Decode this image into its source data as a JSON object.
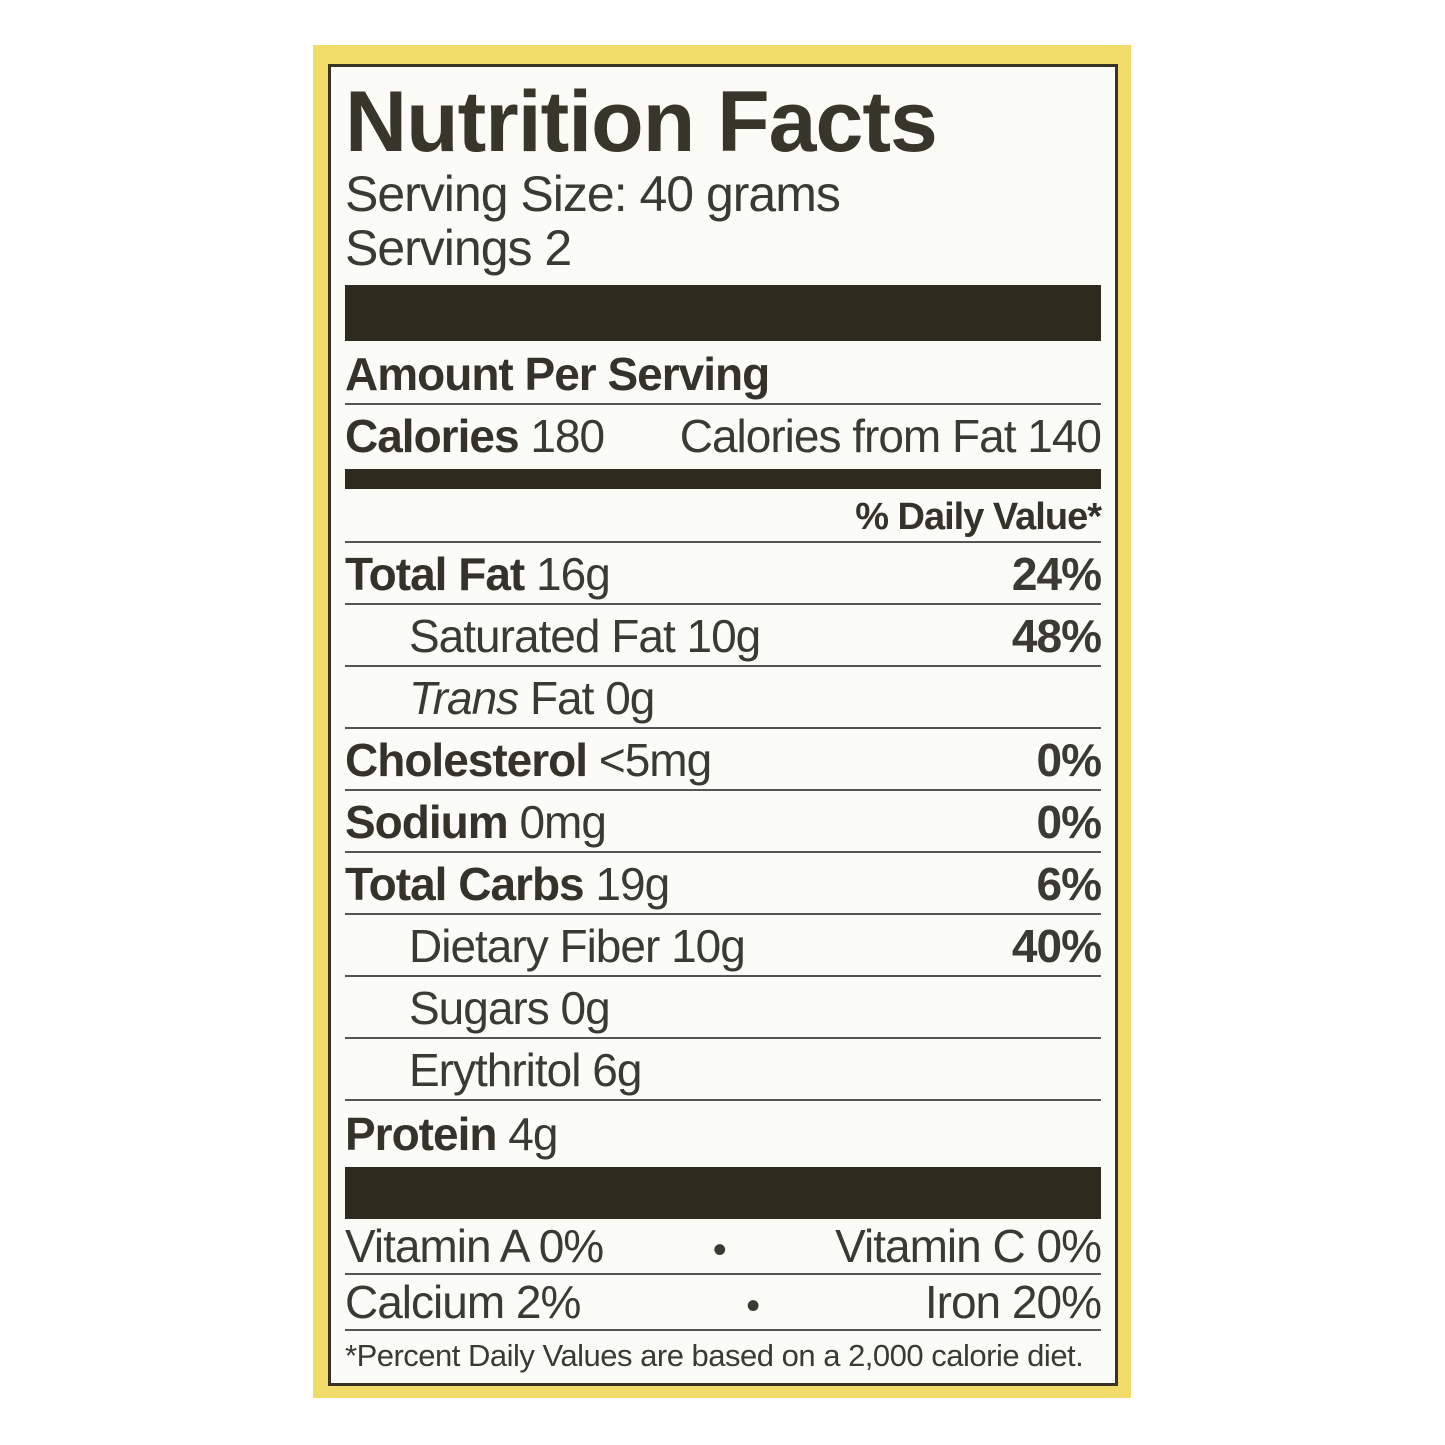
{
  "colors": {
    "panel": "#f1dc6a",
    "ink": "#3b3a32",
    "bar": "#2f2a1e"
  },
  "title": "Nutrition Facts",
  "serving_size": "Serving Size: 40 grams",
  "servings": "Servings 2",
  "amount_per_serving": "Amount Per Serving",
  "calories": {
    "label": "Calories",
    "value": "180",
    "from_fat_label": "Calories from Fat",
    "from_fat_value": "140"
  },
  "daily_value_header": "% Daily Value*",
  "nutrients": [
    {
      "label": "Total Fat",
      "amount": "16g",
      "dv": "24%"
    },
    {
      "label": "Saturated Fat",
      "amount": "10g",
      "dv": "48%"
    },
    {
      "label": "Trans",
      "amount": "Fat 0g",
      "dv": ""
    },
    {
      "label": "Cholesterol",
      "amount": "<5mg",
      "dv": "0%"
    },
    {
      "label": "Sodium",
      "amount": "0mg",
      "dv": "0%"
    },
    {
      "label": "Total Carbs",
      "amount": "19g",
      "dv": "6%"
    },
    {
      "label": "Dietary Fiber",
      "amount": "10g",
      "dv": "40%"
    },
    {
      "label": "Sugars",
      "amount": "0g",
      "dv": ""
    },
    {
      "label": "Erythritol",
      "amount": "6g",
      "dv": ""
    },
    {
      "label": "Protein",
      "amount": "4g",
      "dv": ""
    }
  ],
  "vitamins": [
    {
      "left": "Vitamin A 0%",
      "sep": "•",
      "right": "Vitamin C 0%"
    },
    {
      "left": "Calcium 2%",
      "sep": "•",
      "right": "Iron 20%"
    }
  ],
  "footnote": "*Percent Daily Values are based on a 2,000 calorie diet."
}
